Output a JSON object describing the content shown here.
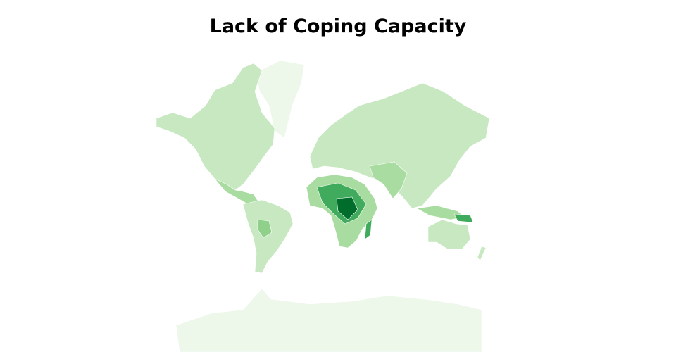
{
  "title": "Lack of Coping Capacity"
}
